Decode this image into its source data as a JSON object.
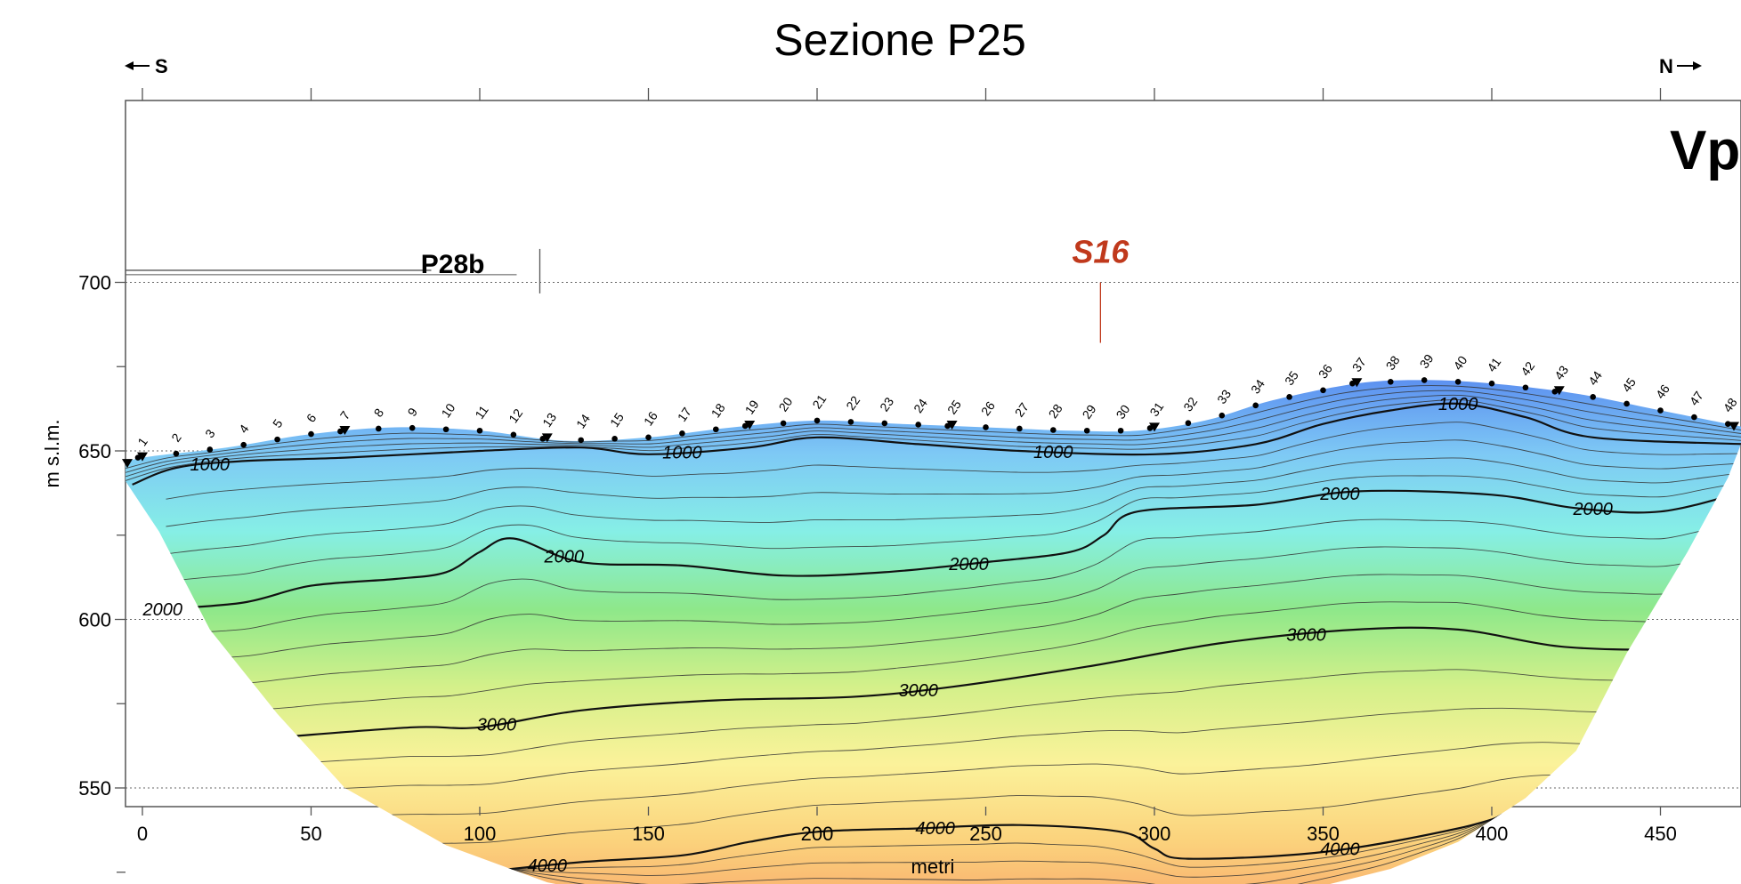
{
  "chart_data": {
    "type": "contour",
    "title": "Sezione P25",
    "xlabel": "metri",
    "ylabel": "m s.l.m.",
    "xlim": [
      -5,
      475
    ],
    "ylim": [
      510,
      720
    ],
    "x_ticks": [
      0,
      50,
      100,
      150,
      200,
      250,
      300,
      350,
      400,
      450
    ],
    "x_tick_labels": [
      "0",
      "50",
      "100",
      "150",
      "200",
      "250",
      "300",
      "350",
      "400",
      "450"
    ],
    "y_ticks": [
      550,
      600,
      650,
      700
    ],
    "y_tick_labels": [
      "550",
      "600",
      "650",
      "700"
    ],
    "grid_y_dotted": [
      550,
      600,
      650,
      700
    ],
    "direction_left": "S",
    "direction_right": "N",
    "parameter_label": "Vp",
    "colormap": [
      "#5b8ef0",
      "#7ec9f5",
      "#86efe6",
      "#8ee88a",
      "#d4f08a",
      "#fbf29a",
      "#fbd27c",
      "#f9a56a"
    ],
    "velocity_range": [
      500,
      4500
    ],
    "contour_labels": [
      "1000",
      "2000",
      "3000",
      "4000"
    ],
    "topography": [
      [
        -5,
        646
      ],
      [
        0,
        648
      ],
      [
        25,
        651
      ],
      [
        50,
        655
      ],
      [
        75,
        657
      ],
      [
        100,
        656
      ],
      [
        125,
        653
      ],
      [
        150,
        654
      ],
      [
        175,
        657
      ],
      [
        200,
        659
      ],
      [
        225,
        658
      ],
      [
        250,
        657
      ],
      [
        275,
        656
      ],
      [
        295,
        656
      ],
      [
        315,
        659
      ],
      [
        335,
        665
      ],
      [
        360,
        670
      ],
      [
        380,
        671
      ],
      [
        400,
        670
      ],
      [
        425,
        667
      ],
      [
        450,
        662
      ],
      [
        475,
        657
      ]
    ],
    "model_bottom": [
      [
        -5,
        641
      ],
      [
        5,
        626
      ],
      [
        20,
        597
      ],
      [
        40,
        572
      ],
      [
        60,
        550
      ],
      [
        90,
        533
      ],
      [
        120,
        522
      ],
      [
        150,
        516
      ],
      [
        200,
        514
      ],
      [
        250,
        512
      ],
      [
        300,
        514
      ],
      [
        330,
        516
      ],
      [
        370,
        526
      ],
      [
        390,
        534
      ],
      [
        410,
        547
      ],
      [
        425,
        561
      ],
      [
        440,
        590
      ],
      [
        458,
        620
      ],
      [
        470,
        642
      ],
      [
        475,
        655
      ]
    ],
    "contours_major": [
      {
        "value": 1000,
        "points": [
          [
            -3,
            640
          ],
          [
            10,
            645
          ],
          [
            30,
            647
          ],
          [
            60,
            648
          ],
          [
            100,
            650
          ],
          [
            130,
            651
          ],
          [
            150,
            649
          ],
          [
            180,
            651
          ],
          [
            200,
            654
          ],
          [
            230,
            652
          ],
          [
            260,
            650
          ],
          [
            300,
            649
          ],
          [
            330,
            652
          ],
          [
            350,
            658
          ],
          [
            370,
            662
          ],
          [
            390,
            664
          ],
          [
            410,
            660
          ],
          [
            430,
            654
          ],
          [
            475,
            652
          ]
        ]
      },
      {
        "value": 2000,
        "points": [
          [
            5,
            603
          ],
          [
            30,
            605
          ],
          [
            50,
            610
          ],
          [
            75,
            612
          ],
          [
            90,
            614
          ],
          [
            100,
            620
          ],
          [
            110,
            624
          ],
          [
            130,
            617
          ],
          [
            160,
            616
          ],
          [
            190,
            613
          ],
          [
            220,
            614
          ],
          [
            250,
            617
          ],
          [
            275,
            620
          ],
          [
            285,
            625
          ],
          [
            295,
            632
          ],
          [
            330,
            634
          ],
          [
            360,
            638
          ],
          [
            400,
            637
          ],
          [
            425,
            633
          ],
          [
            450,
            632
          ],
          [
            475,
            638
          ]
        ]
      },
      {
        "value": 3000,
        "points": [
          [
            40,
            565
          ],
          [
            80,
            568
          ],
          [
            100,
            568
          ],
          [
            130,
            573
          ],
          [
            170,
            576
          ],
          [
            210,
            577
          ],
          [
            240,
            580
          ],
          [
            280,
            586
          ],
          [
            320,
            593
          ],
          [
            360,
            597
          ],
          [
            390,
            597
          ],
          [
            420,
            592
          ],
          [
            450,
            591
          ],
          [
            465,
            592
          ]
        ]
      },
      {
        "value": 4000,
        "points": [
          [
            100,
            525
          ],
          [
            130,
            528
          ],
          [
            160,
            530
          ],
          [
            180,
            534
          ],
          [
            200,
            537
          ],
          [
            230,
            538
          ],
          [
            260,
            539
          ],
          [
            290,
            537
          ],
          [
            300,
            532
          ],
          [
            310,
            529
          ],
          [
            350,
            531
          ],
          [
            390,
            538
          ],
          [
            410,
            544
          ]
        ]
      }
    ],
    "stations": [
      {
        "n": "1",
        "x": 0,
        "shot": true
      },
      {
        "n": "2",
        "x": 10
      },
      {
        "n": "3",
        "x": 20
      },
      {
        "n": "4",
        "x": 30
      },
      {
        "n": "5",
        "x": 40
      },
      {
        "n": "6",
        "x": 50
      },
      {
        "n": "7",
        "x": 60,
        "shot": true
      },
      {
        "n": "8",
        "x": 70
      },
      {
        "n": "9",
        "x": 80
      },
      {
        "n": "10",
        "x": 90
      },
      {
        "n": "11",
        "x": 100
      },
      {
        "n": "12",
        "x": 110
      },
      {
        "n": "13",
        "x": 120,
        "shot": true
      },
      {
        "n": "14",
        "x": 130
      },
      {
        "n": "15",
        "x": 140
      },
      {
        "n": "16",
        "x": 150
      },
      {
        "n": "17",
        "x": 160
      },
      {
        "n": "18",
        "x": 170
      },
      {
        "n": "19",
        "x": 180,
        "shot": true
      },
      {
        "n": "20",
        "x": 190
      },
      {
        "n": "21",
        "x": 200
      },
      {
        "n": "22",
        "x": 210
      },
      {
        "n": "23",
        "x": 220
      },
      {
        "n": "24",
        "x": 230
      },
      {
        "n": "25",
        "x": 240,
        "shot": true
      },
      {
        "n": "26",
        "x": 250
      },
      {
        "n": "27",
        "x": 260
      },
      {
        "n": "28",
        "x": 270
      },
      {
        "n": "29",
        "x": 280
      },
      {
        "n": "30",
        "x": 290
      },
      {
        "n": "31",
        "x": 300,
        "shot": true
      },
      {
        "n": "32",
        "x": 310
      },
      {
        "n": "33",
        "x": 320
      },
      {
        "n": "34",
        "x": 330
      },
      {
        "n": "35",
        "x": 340
      },
      {
        "n": "36",
        "x": 350
      },
      {
        "n": "37",
        "x": 360,
        "shot": true
      },
      {
        "n": "38",
        "x": 370
      },
      {
        "n": "39",
        "x": 380
      },
      {
        "n": "40",
        "x": 390
      },
      {
        "n": "41",
        "x": 400
      },
      {
        "n": "42",
        "x": 410
      },
      {
        "n": "43",
        "x": 420,
        "shot": true
      },
      {
        "n": "44",
        "x": 430
      },
      {
        "n": "45",
        "x": 440
      },
      {
        "n": "46",
        "x": 450
      },
      {
        "n": "47",
        "x": 460
      },
      {
        "n": "48",
        "x": 470
      }
    ],
    "extra_shots": [
      -5,
      475
    ],
    "annotations": [
      {
        "label": "P28b",
        "type": "intersection",
        "x": 112,
        "y": 702
      },
      {
        "label": "S16",
        "type": "borehole",
        "x": 284,
        "y": 700,
        "color": "#c0391c"
      }
    ]
  }
}
